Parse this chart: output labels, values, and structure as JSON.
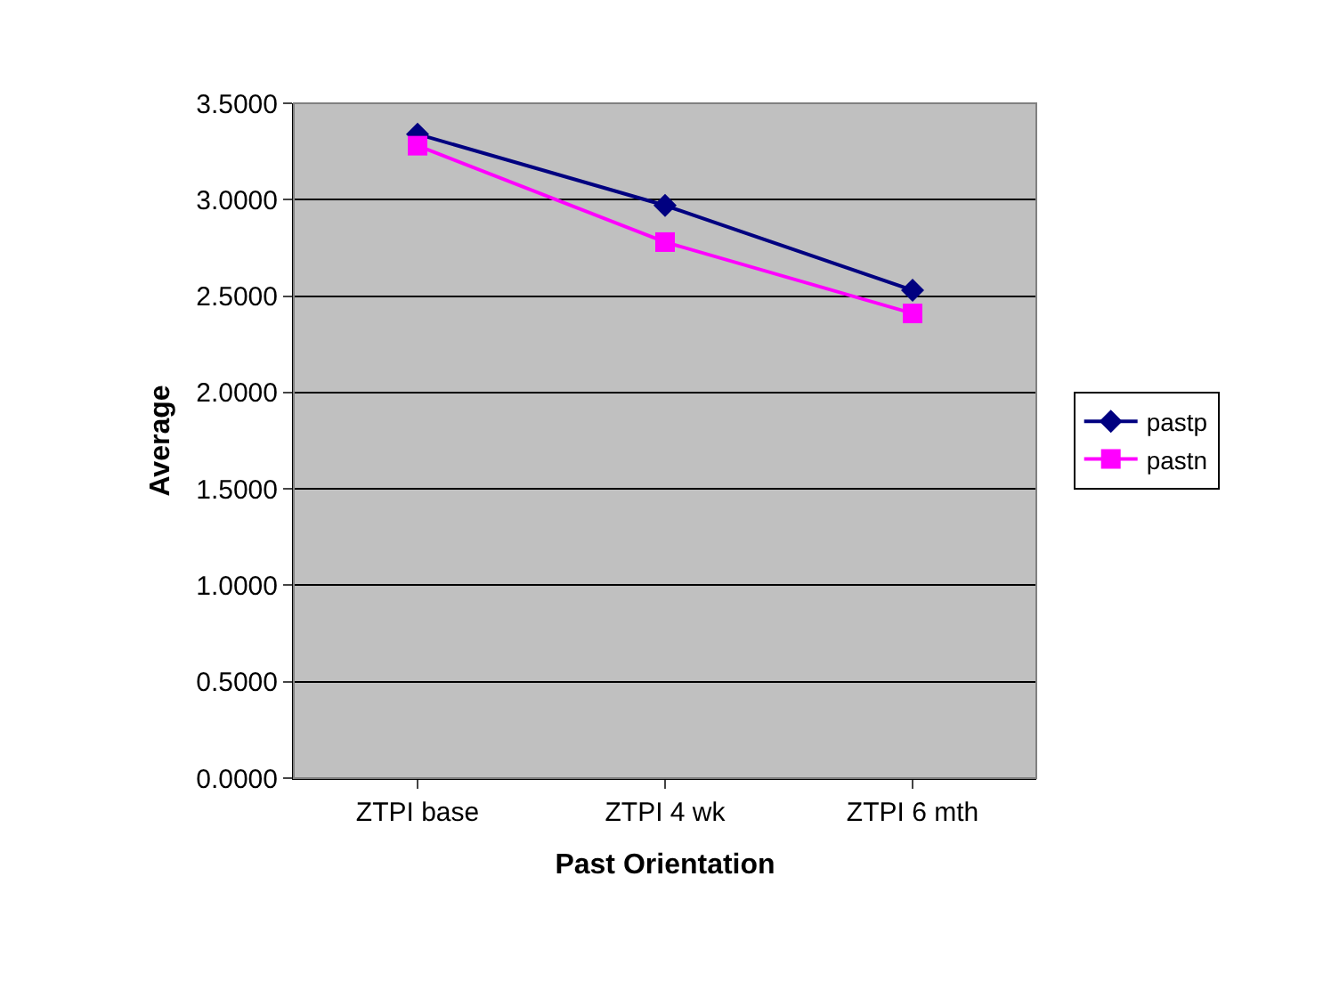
{
  "chart_data": {
    "type": "line",
    "xlabel": "Past Orientation",
    "ylabel": "Average",
    "categories": [
      "ZTPI base",
      "ZTPI 4 wk",
      "ZTPI 6 mth"
    ],
    "series": [
      {
        "name": "pastp",
        "color": "#000080",
        "values": [
          3.34,
          2.97,
          2.53
        ],
        "marker": "diamond"
      },
      {
        "name": "pastn",
        "color": "#ff00ff",
        "values": [
          3.28,
          2.78,
          2.41
        ],
        "marker": "square"
      }
    ],
    "ylim": [
      0,
      3.5
    ],
    "yticks": [
      {
        "value": 0,
        "label": "0.0000"
      },
      {
        "value": 0.5,
        "label": "0.5000"
      },
      {
        "value": 1,
        "label": "1.0000"
      },
      {
        "value": 1.5,
        "label": "1.5000"
      },
      {
        "value": 2,
        "label": "2.0000"
      },
      {
        "value": 2.5,
        "label": "2.5000"
      },
      {
        "value": 3,
        "label": "3.0000"
      },
      {
        "value": 3.5,
        "label": "3.5000"
      }
    ],
    "grid": "y",
    "legend": "right",
    "line_style": "solid"
  }
}
